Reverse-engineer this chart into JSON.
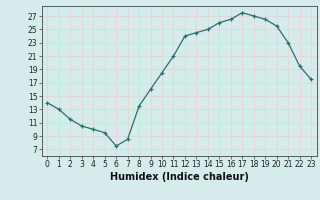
{
  "x": [
    0,
    1,
    2,
    3,
    4,
    5,
    6,
    7,
    8,
    9,
    10,
    11,
    12,
    13,
    14,
    15,
    16,
    17,
    18,
    19,
    20,
    21,
    22,
    23
  ],
  "y": [
    14,
    13,
    11.5,
    10.5,
    10,
    9.5,
    7.5,
    8.5,
    13.5,
    16,
    18.5,
    21,
    24,
    24.5,
    25,
    26,
    26.5,
    27.5,
    27,
    26.5,
    25.5,
    23,
    19.5,
    17.5
  ],
  "xlabel": "Humidex (Indice chaleur)",
  "xlim": [
    -0.5,
    23.5
  ],
  "ylim": [
    6,
    28.5
  ],
  "yticks": [
    7,
    9,
    11,
    13,
    15,
    17,
    19,
    21,
    23,
    25,
    27
  ],
  "xticks": [
    0,
    1,
    2,
    3,
    4,
    5,
    6,
    7,
    8,
    9,
    10,
    11,
    12,
    13,
    14,
    15,
    16,
    17,
    18,
    19,
    20,
    21,
    22,
    23
  ],
  "bg_color": "#d5ecea",
  "line_color": "#2d6e6e",
  "grid_color": "#e8d0d0",
  "tick_fontsize": 5.5,
  "label_fontsize": 7
}
